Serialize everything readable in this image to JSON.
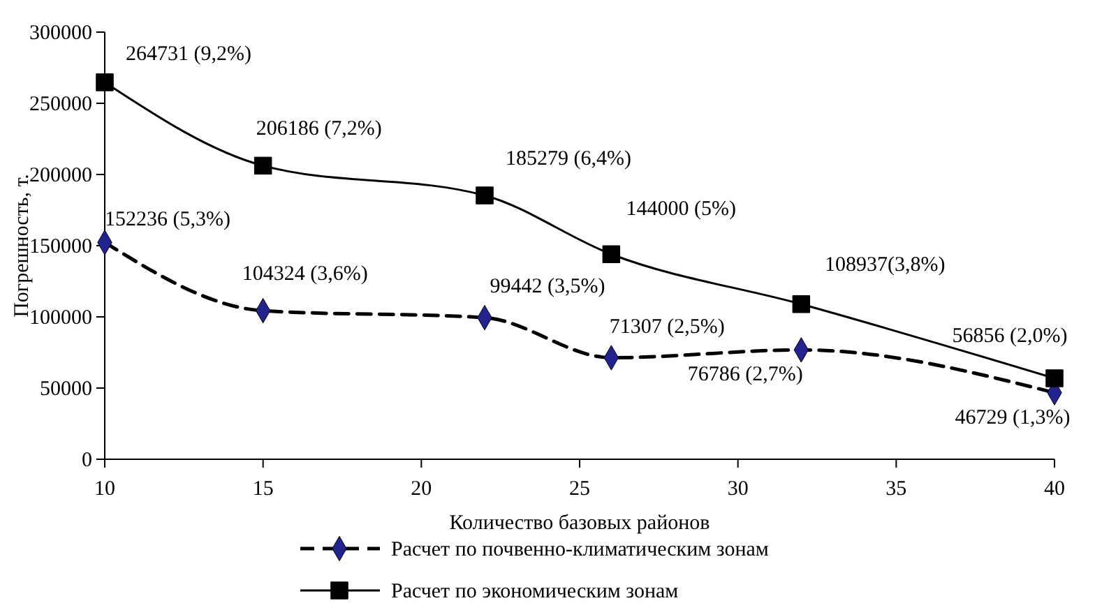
{
  "chart_data": {
    "type": "line",
    "xlabel": "Количество базовых районов",
    "ylabel": "Погрешность, т.",
    "x": [
      10,
      15,
      22,
      26,
      32,
      40
    ],
    "xlim": [
      10,
      40
    ],
    "xticks": [
      10,
      15,
      20,
      25,
      30,
      35,
      40
    ],
    "ylim": [
      0,
      300000
    ],
    "yticks": [
      0,
      50000,
      100000,
      150000,
      200000,
      250000,
      300000
    ],
    "grid": false,
    "legend": "bottom",
    "series": [
      {
        "name": "Расчет по почвенно-климатическим зонам",
        "color": "#232390",
        "marker": "diamond",
        "line_style": "dashed",
        "values": [
          152236,
          104324,
          99442,
          71307,
          76786,
          46729
        ],
        "value_labels": [
          "152236 (5,3%)",
          "104324 (3,6%)",
          "99442 (3,5%)",
          "71307 (2,5%)",
          "76786 (2,7%)",
          "46729 (1,3%)"
        ]
      },
      {
        "name": "Расчет по экономическим зонам",
        "color": "#000000",
        "marker": "square",
        "line_style": "solid",
        "values": [
          264731,
          206186,
          185279,
          144000,
          108937,
          56856
        ],
        "value_labels": [
          "264731 (9,2%)",
          "206186 (7,2%)",
          "185279 (6,4%)",
          "144000 (5%)",
          "108937(3,8%)",
          "56856 (2,0%)"
        ]
      }
    ]
  }
}
